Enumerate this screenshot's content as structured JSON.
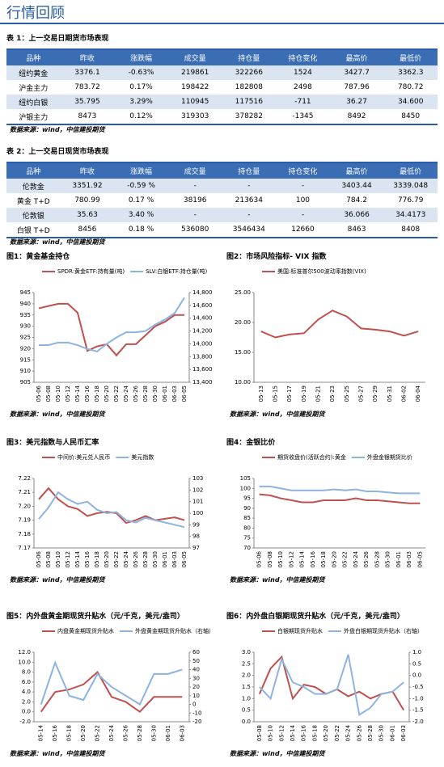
{
  "title": "行情回顾",
  "tables": [
    {
      "caption": "表 1：上一交易日期货市场表现",
      "header": [
        "品种",
        "昨收",
        "涨跌幅",
        "成交量",
        "持仓量",
        "持仓变化",
        "最高价",
        "最低价"
      ],
      "rows": [
        [
          "纽约黄金",
          "3376.1",
          "-0.63%",
          "219861",
          "322266",
          "1524",
          "3427.7",
          "3362.3"
        ],
        [
          "沪金主力",
          "783.72",
          "0.17%",
          "198422",
          "182808",
          "2498",
          "787.96",
          "780.72"
        ],
        [
          "纽约白银",
          "35.795",
          "3.29%",
          "110945",
          "117516",
          "-711",
          "36.27",
          "34.600"
        ],
        [
          "沪银主力",
          "8473",
          "0.12%",
          "319303",
          "378282",
          "-1345",
          "8492",
          "8450"
        ]
      ],
      "source": "数据来源：wind，中信建投期货"
    },
    {
      "caption": "表 2：上一交易日现货市场表现",
      "header": [
        "品种",
        "昨收",
        "涨跌幅",
        "成交量",
        "持仓量",
        "持仓变化",
        "最高价",
        "最低价"
      ],
      "rows": [
        [
          "伦敦金",
          "3351.92",
          "-0.59 %",
          "-",
          "-",
          "-",
          "3403.44",
          "3339.048"
        ],
        [
          "黄金 T+D",
          "780.99",
          "0.17 %",
          "38196",
          "213634",
          "100",
          "784.2",
          "776.79"
        ],
        [
          "伦敦银",
          "35.63",
          "3.40 %",
          "-",
          "-",
          "-",
          "36.066",
          "34.4173"
        ],
        [
          "白银 T+D",
          "8456",
          "0.18 %",
          "536080",
          "3546434",
          "12660",
          "8463",
          "8408"
        ]
      ],
      "source": "数据来源：wind，中信建投期货"
    }
  ],
  "chart_data": [
    {
      "type": "line",
      "title": "图1：黄金基金持仓",
      "source": "数据来源：wind，中信建投期货",
      "categories": [
        "05-06",
        "05-08",
        "05-10",
        "05-12",
        "05-14",
        "05-16",
        "05-18",
        "05-20",
        "05-22",
        "05-24",
        "05-26",
        "05-28",
        "05-30",
        "06-01",
        "06-03",
        "06-05"
      ],
      "series": [
        {
          "name": "SPDR:黄金ETF:持有量(吨)",
          "color": "#c0504d",
          "values": [
            938,
            939,
            940,
            940,
            936,
            919,
            921,
            922,
            917,
            922,
            922,
            926,
            930,
            932,
            935,
            935
          ]
        },
        {
          "name": "SLV:白银ETF:持仓量(吨)",
          "color": "#8db3e2",
          "axis": "y2",
          "values": [
            13980,
            13980,
            14020,
            14020,
            13980,
            13920,
            13880,
            14000,
            14100,
            14180,
            14180,
            14200,
            14300,
            14380,
            14480,
            14720
          ]
        }
      ],
      "ylim": [
        905,
        945
      ],
      "yticks": [
        905,
        910,
        915,
        920,
        925,
        930,
        935,
        940,
        945
      ],
      "y2lim": [
        13400,
        14800
      ],
      "y2ticks": [
        {
          "value": 13400,
          "label": "13,400"
        },
        {
          "value": 13600,
          "label": "13,600"
        },
        {
          "value": 13800,
          "label": "13,800"
        },
        {
          "value": 14000,
          "label": "14,000"
        },
        {
          "value": 14200,
          "label": "14,200"
        },
        {
          "value": 14400,
          "label": "14,400"
        },
        {
          "value": 14600,
          "label": "14,600"
        },
        {
          "value": 14800,
          "label": "14,800"
        }
      ]
    },
    {
      "type": "line",
      "title": "图2：市场风险指标- VIX 指数",
      "source": "数据来源：wind，中信建投期货",
      "categories": [
        "05-13",
        "05-15",
        "05-17",
        "05-19",
        "05-21",
        "05-23",
        "05-25",
        "05-27",
        "05-29",
        "05-31",
        "06-02",
        "06-04"
      ],
      "series": [
        {
          "name": "美国:标准普尔500波动率指数(VIX)",
          "color": "#c0504d",
          "values": [
            18.5,
            17.5,
            18,
            18.2,
            20.5,
            22,
            21,
            19,
            18.8,
            18.5,
            17.8,
            18.5
          ]
        }
      ],
      "ylim": [
        10,
        25
      ],
      "yticks": [
        {
          "value": 10,
          "label": "10.00"
        },
        {
          "value": 15,
          "label": "15.00"
        },
        {
          "value": 20,
          "label": "20.00"
        },
        {
          "value": 25,
          "label": "25.00"
        }
      ]
    },
    {
      "type": "line",
      "title": "图3：美元指数与人民币汇率",
      "source": "数据来源：wind，中信建投期货",
      "categories": [
        "05-06",
        "05-08",
        "05-10",
        "05-12",
        "05-14",
        "05-16",
        "05-18",
        "05-20",
        "05-22",
        "05-24",
        "05-26",
        "05-28",
        "05-30",
        "06-01",
        "06-03",
        "06-05"
      ],
      "series": [
        {
          "name": "中间价:美元兑人民币",
          "color": "#c0504d",
          "values": [
            7.205,
            7.213,
            7.205,
            7.2,
            7.198,
            7.193,
            7.195,
            7.196,
            7.195,
            7.188,
            7.19,
            7.193,
            7.19,
            7.191,
            7.192,
            7.19
          ]
        },
        {
          "name": "美元指数",
          "color": "#8db3e2",
          "axis": "y2",
          "values": [
            99.5,
            100.5,
            101.8,
            101.2,
            100.8,
            101,
            100.3,
            100,
            100.1,
            99.4,
            99.2,
            99.6,
            99.4,
            99.2,
            99,
            98.8
          ]
        }
      ],
      "ylim": [
        7.17,
        7.22
      ],
      "yticks": [
        {
          "value": 7.17,
          "label": "7.17"
        },
        {
          "value": 7.18,
          "label": "7.18"
        },
        {
          "value": 7.19,
          "label": "7.19"
        },
        {
          "value": 7.2,
          "label": "7.20"
        },
        {
          "value": 7.21,
          "label": "7.21"
        },
        {
          "value": 7.22,
          "label": "7.22"
        }
      ],
      "y2lim": [
        97,
        103
      ],
      "y2ticks": [
        97,
        98,
        99,
        100,
        101,
        102,
        103
      ]
    },
    {
      "type": "line",
      "title": "图4：金银比价",
      "source": "数据来源：wind，中信建投期货",
      "categories": [
        "05-06",
        "05-08",
        "05-10",
        "05-12",
        "05-14",
        "05-16",
        "05-18",
        "05-20",
        "05-22",
        "05-24",
        "05-26",
        "05-28",
        "05-30",
        "06-01",
        "06-03",
        "06-05"
      ],
      "series": [
        {
          "name": "期货收盘价(活跃合约):黄金",
          "color": "#c0504d",
          "values": [
            97,
            96.5,
            95,
            94,
            93,
            93,
            94,
            94,
            94,
            95,
            94,
            94,
            93.5,
            93,
            92.5,
            92.5
          ]
        },
        {
          "name": "外盘金银期货比价",
          "color": "#8db3e2",
          "values": [
            101,
            101,
            100,
            99,
            99,
            99,
            99,
            99.5,
            99,
            99.5,
            98.5,
            98.5,
            98,
            97.5,
            97.5,
            97.5
          ]
        }
      ],
      "ylim": [
        70,
        105
      ],
      "yticks": [
        70,
        75,
        80,
        85,
        90,
        95,
        100,
        105
      ]
    },
    {
      "type": "line",
      "title": "图5：内外盘黄金期现货升贴水（元/千克，美元/盎司）",
      "source": "数据来源：wind，中信建投期货",
      "categories": [
        "05-14",
        "05-16",
        "05-18",
        "05-20",
        "05-22",
        "05-24",
        "05-26",
        "05-28",
        "05-30",
        "06-01",
        "06-03"
      ],
      "series": [
        {
          "name": "内盘黄金期现货升贴水",
          "color": "#c0504d",
          "values": [
            0,
            4,
            4.5,
            5.5,
            8,
            3,
            2,
            0,
            3,
            3,
            3
          ]
        },
        {
          "name": "外盘黄金期现货升贴水（右轴）",
          "color": "#8db3e2",
          "axis": "y2",
          "values": [
            0,
            48,
            10,
            5,
            35,
            20,
            10,
            0,
            35,
            35,
            40
          ]
        }
      ],
      "ylim": [
        -2,
        12
      ],
      "yticks": [
        {
          "value": -2,
          "label": "-2.0"
        },
        {
          "value": 0,
          "label": "0.0"
        },
        {
          "value": 2,
          "label": "2.0"
        },
        {
          "value": 4,
          "label": "4.0"
        },
        {
          "value": 6,
          "label": "6.0"
        },
        {
          "value": 8,
          "label": "8.0"
        },
        {
          "value": 10,
          "label": "10.0"
        },
        {
          "value": 12,
          "label": "12.0"
        }
      ],
      "y2lim": [
        -20,
        60
      ],
      "y2ticks": [
        -20,
        -10,
        0,
        10,
        20,
        30,
        40,
        50,
        60
      ]
    },
    {
      "type": "line",
      "title": "图6：内外盘白银期现货升贴水（元/千克，美元/盎司）",
      "source": "数据来源：wind，中信建投期货",
      "categories": [
        "05-08",
        "05-10",
        "05-12",
        "05-14",
        "05-16",
        "05-18",
        "05-20",
        "05-22",
        "05-24",
        "05-26",
        "05-28",
        "05-30",
        "06-01",
        "06-03"
      ],
      "series": [
        {
          "name": "白银期现货升贴水",
          "color": "#c0504d",
          "values": [
            1.2,
            2.3,
            2.8,
            1,
            1.6,
            1.5,
            1.2,
            1.4,
            1.1,
            1.3,
            1,
            1.2,
            1.3,
            0.5
          ]
        },
        {
          "name": "外盘白银期现货升贴水（右轴）",
          "color": "#8db3e2",
          "axis": "y2",
          "values": [
            -0.5,
            -1,
            0.7,
            -0.3,
            -0.5,
            -0.8,
            -0.8,
            -0.6,
            0.9,
            -1.7,
            -1.4,
            -0.8,
            -0.7,
            -0.3
          ]
        }
      ],
      "ylim": [
        0,
        3
      ],
      "yticks": [
        {
          "value": 0,
          "label": "0.0"
        },
        {
          "value": 0.5,
          "label": "0.5"
        },
        {
          "value": 1,
          "label": "1.0"
        },
        {
          "value": 1.5,
          "label": "1.5"
        },
        {
          "value": 2,
          "label": "2.0"
        },
        {
          "value": 2.5,
          "label": "2.5"
        },
        {
          "value": 3,
          "label": "3.0"
        }
      ],
      "y2lim": [
        -2,
        1
      ],
      "y2ticks": [
        {
          "value": -2,
          "label": "-2.0"
        },
        {
          "value": -1.5,
          "label": "-1.5"
        },
        {
          "value": -1,
          "label": "-1.0"
        },
        {
          "value": -0.5,
          "label": "-0.5"
        },
        {
          "value": 0,
          "label": "0.0"
        },
        {
          "value": 0.5,
          "label": "0.5"
        },
        {
          "value": 1,
          "label": "1.0"
        }
      ]
    }
  ]
}
